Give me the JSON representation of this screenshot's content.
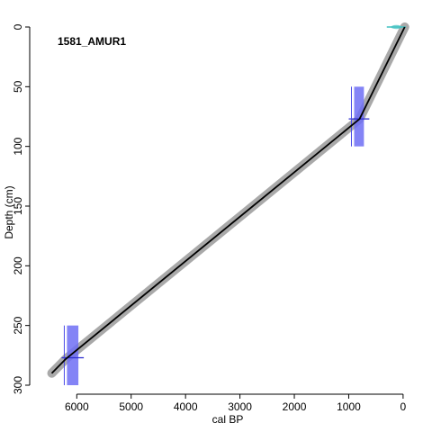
{
  "chart_data": {
    "type": "line",
    "title": "1581_AMUR1",
    "xlabel": "cal BP",
    "ylabel": "Depth (cm)",
    "x_reversed": true,
    "y_reversed": true,
    "xlim": [
      6700,
      -250
    ],
    "ylim": [
      0,
      300
    ],
    "x_ticks": [
      6000,
      5000,
      4000,
      3000,
      2000,
      1000,
      0
    ],
    "y_ticks": [
      0,
      50,
      100,
      150,
      200,
      250,
      300
    ],
    "grid": false,
    "colors": {
      "median_line": "#000000",
      "uncertainty_band": "#a9a9a9",
      "dated_level": "#6f6ff5",
      "surface_date": "#40c0c0"
    },
    "series": [
      {
        "values": [
          {
            "x": -30,
            "y": 0
          },
          {
            "x": 800,
            "y": 77
          },
          {
            "x": 6200,
            "y": 278
          },
          {
            "x": 6460,
            "y": 290
          }
        ]
      }
    ],
    "dated_levels": [
      {
        "depth_top": 0,
        "depth_bottom": 1,
        "age_min": -50,
        "age_max": 300,
        "kind": "surface"
      },
      {
        "depth_top": 50,
        "depth_bottom": 100,
        "age_min": 720,
        "age_max": 900,
        "kind": "radiocarbon"
      },
      {
        "depth_top": 250,
        "depth_bottom": 300,
        "age_min": 5970,
        "age_max": 6180,
        "kind": "radiocarbon"
      }
    ]
  }
}
